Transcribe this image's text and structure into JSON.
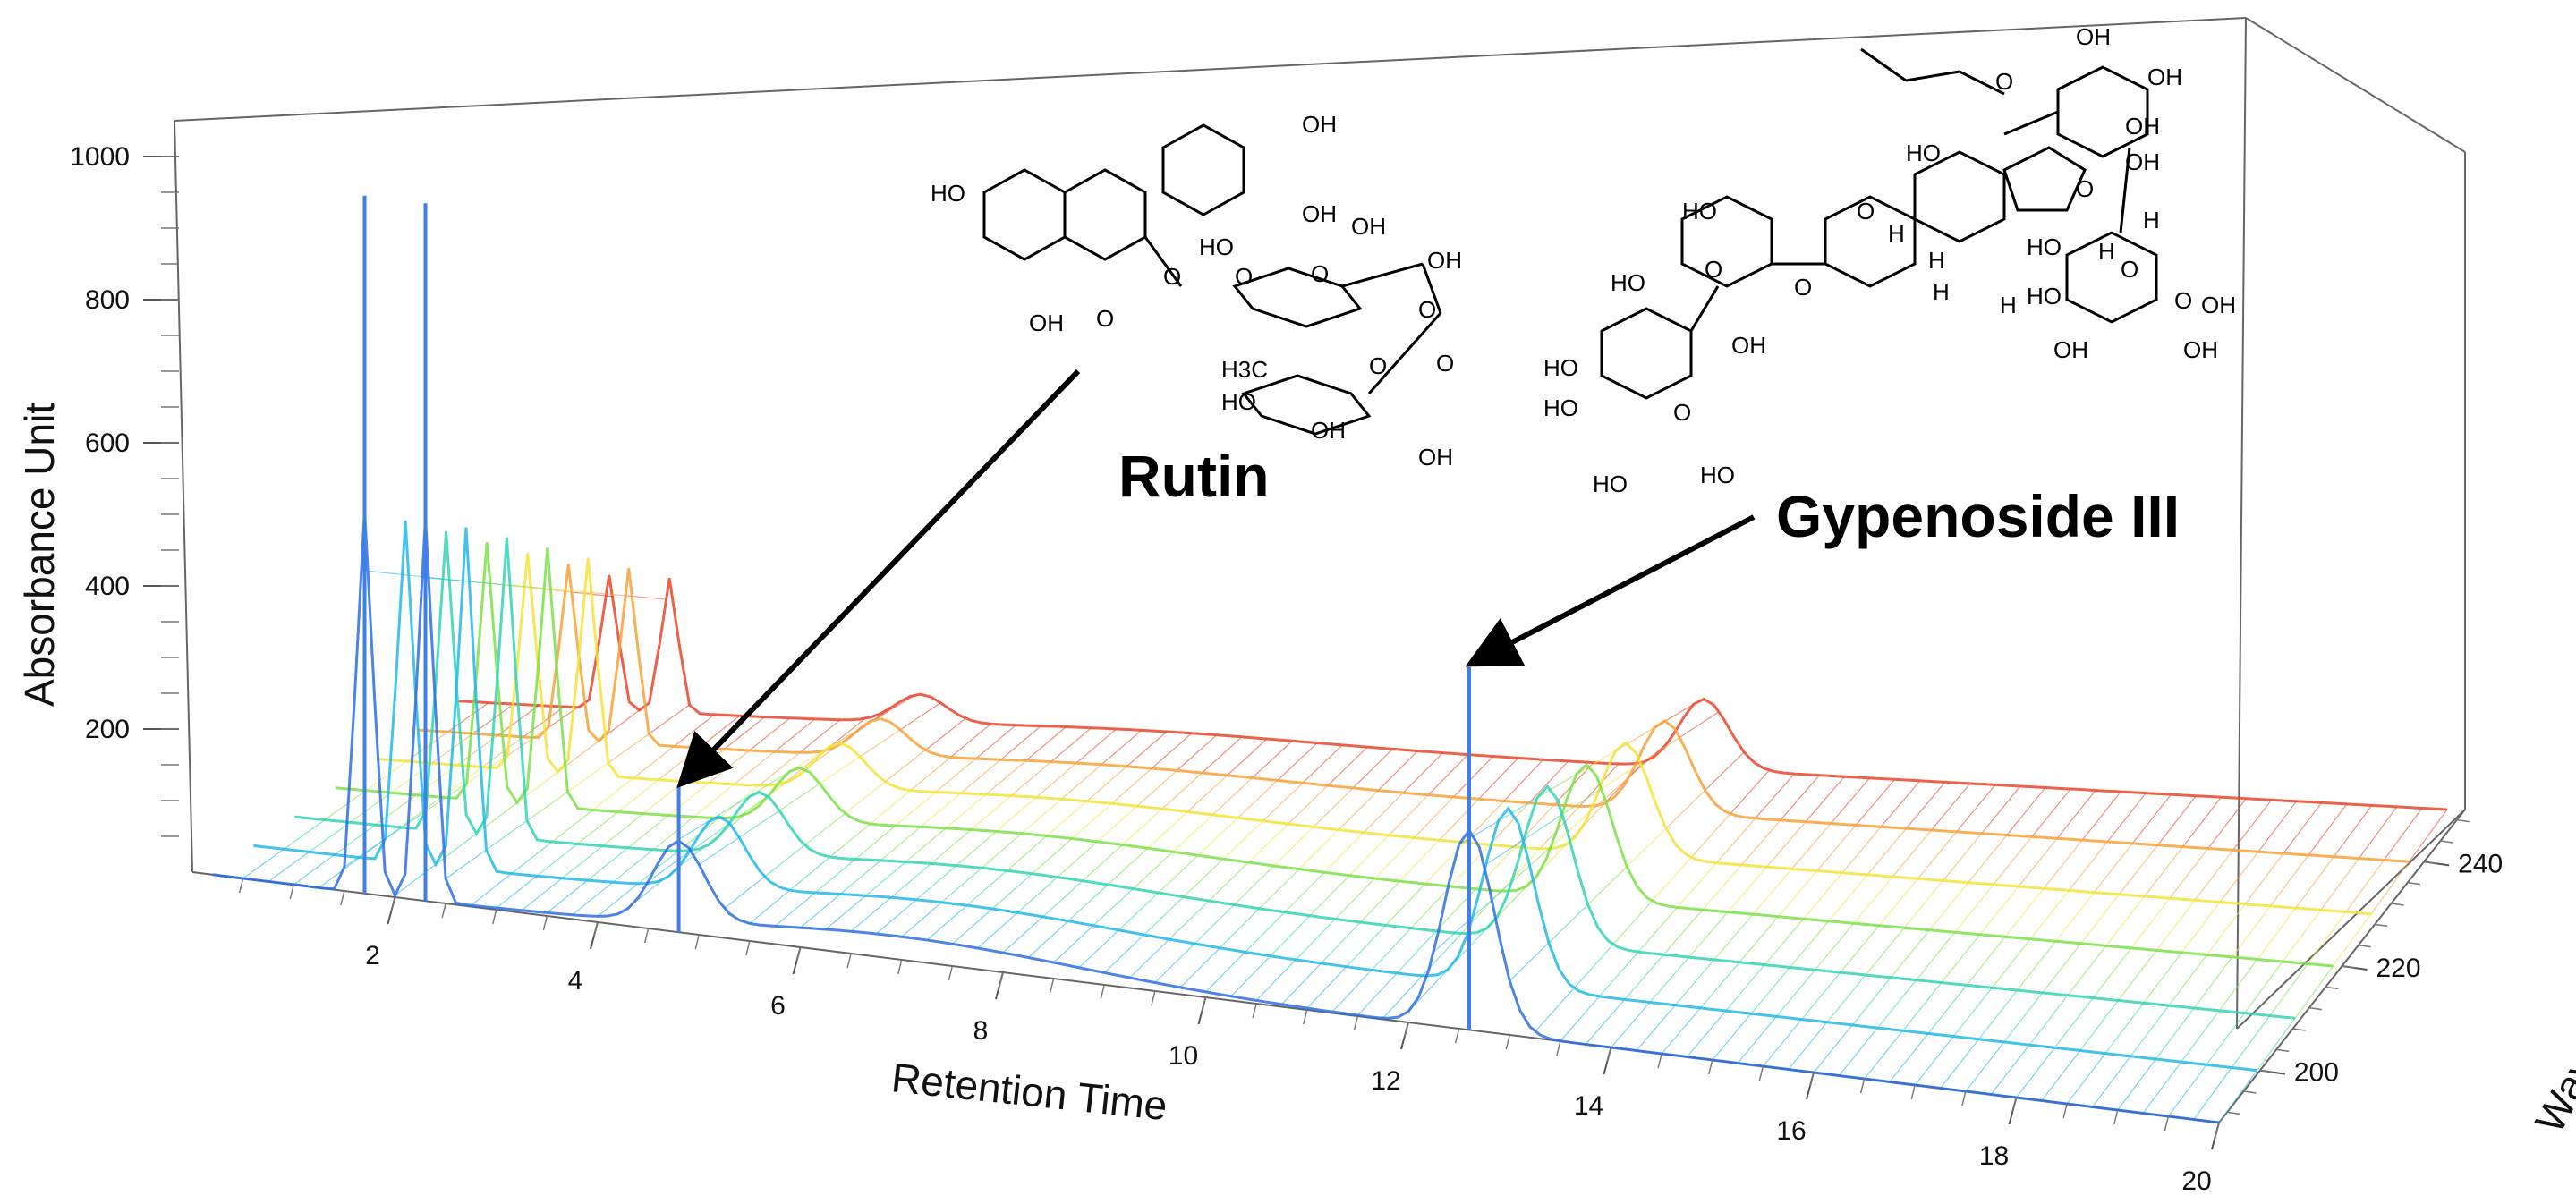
{
  "chart_data": {
    "type": "3d-surface",
    "title": "",
    "xlabel": "Retention Time",
    "ylabel": "Absorbance Unit",
    "zlabel": "Wavelength",
    "x_ticks": [
      2,
      4,
      6,
      8,
      10,
      12,
      14,
      16,
      18,
      20
    ],
    "y_ticks": [
      200,
      400,
      600,
      800,
      1000
    ],
    "z_ticks": [
      200,
      220,
      240
    ],
    "xlim": [
      0,
      20
    ],
    "ylim": [
      0,
      1050
    ],
    "zlim": [
      190,
      250
    ],
    "grid": false,
    "colormap": [
      "#2f6fe0",
      "#22b8e8",
      "#34d3b3",
      "#7ee04a",
      "#f3e33a",
      "#f7a23a",
      "#e8452b"
    ],
    "peaks": [
      {
        "retention_time": 1.7,
        "absorbance": 1000
      },
      {
        "retention_time": 2.3,
        "absorbance": 1000
      },
      {
        "retention_time": 4.8,
        "absorbance": 210
      },
      {
        "retention_time": 12.6,
        "absorbance": 520
      }
    ],
    "annotations": [
      {
        "label": "Rutin",
        "retention_time": 4.8,
        "absorbance": 210
      },
      {
        "label": "Gypenoside III",
        "retention_time": 12.6,
        "absorbance": 520
      }
    ]
  },
  "structures": {
    "rutin_labels": [
      "HO",
      "OH",
      "OH",
      "OH",
      "HO",
      "OH",
      "OH",
      "O",
      "O",
      "O",
      "O",
      "O",
      "O",
      "H3C",
      "O",
      "HO",
      "OH",
      "OH"
    ],
    "gypenoside_labels": [
      "OH",
      "O",
      "OH",
      "OH",
      "OH",
      "HO",
      "O",
      "HO",
      "HO",
      "O",
      "O",
      "H",
      "H",
      "H",
      "H",
      "H",
      "O",
      "HO",
      "HO",
      "O",
      "H",
      "O",
      "HO",
      "HO",
      "OH",
      "HO",
      "O",
      "OH",
      "OH",
      "OH",
      "HO"
    ]
  }
}
